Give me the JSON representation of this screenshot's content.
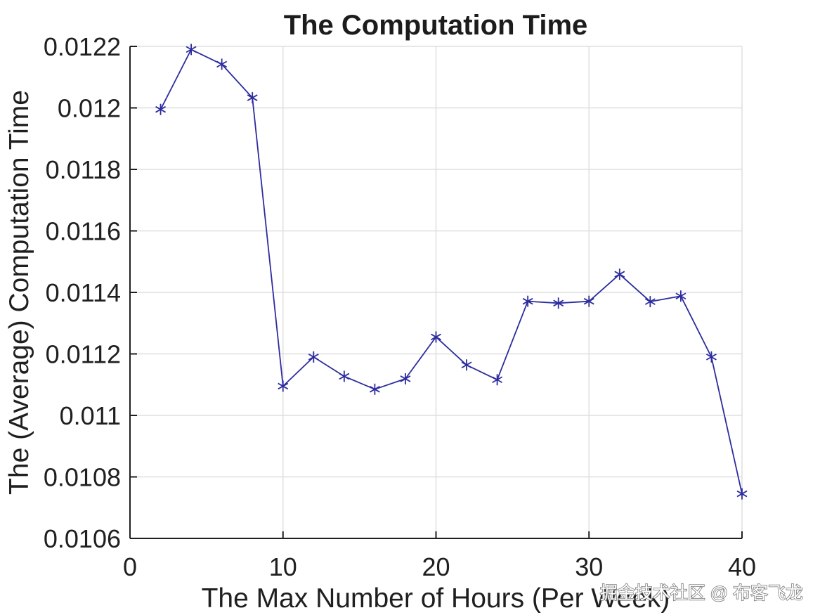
{
  "figure": {
    "background": "#ffffff"
  },
  "chart_data": {
    "type": "line",
    "title": "The Computation Time",
    "xlabel": "The Max Number of Hours (Per Week)",
    "ylabel": "The (Average) Computation Time",
    "x": [
      2,
      4,
      6,
      8,
      10,
      12,
      14,
      16,
      18,
      20,
      22,
      24,
      26,
      28,
      30,
      32,
      34,
      36,
      38,
      40
    ],
    "y": [
      0.011995,
      0.01219,
      0.012142,
      0.012033,
      0.011095,
      0.01119,
      0.011127,
      0.011085,
      0.011119,
      0.011255,
      0.011164,
      0.011116,
      0.011371,
      0.011365,
      0.011371,
      0.011459,
      0.01137,
      0.011388,
      0.01119,
      0.010745
    ],
    "xlim": [
      0,
      40
    ],
    "ylim": [
      0.0106,
      0.0122
    ],
    "xticks": {
      "values": [
        0,
        10,
        20,
        30,
        40
      ],
      "labels": [
        "0",
        "10",
        "20",
        "30",
        "40"
      ]
    },
    "yticks": {
      "values": [
        0.0106,
        0.0108,
        0.011,
        0.0112,
        0.0114,
        0.0116,
        0.0118,
        0.012,
        0.0122
      ],
      "labels": [
        "0.0106",
        "0.0108",
        "0.011",
        "0.0112",
        "0.0114",
        "0.0116",
        "0.0118",
        "0.012",
        "0.0122"
      ]
    },
    "grid": true,
    "legend": "none",
    "marker": "asterisk",
    "line_color": "#2c2c9e",
    "marker_color": "#2c2c9e",
    "axis_color": "#1f1f1f",
    "grid_color": "#dfdfdf",
    "background": "#ffffff"
  },
  "watermark": {
    "text": "掘金技术社区 @ 布客飞龙",
    "fill": "#ffffff",
    "outline": "#7a7a7a"
  }
}
